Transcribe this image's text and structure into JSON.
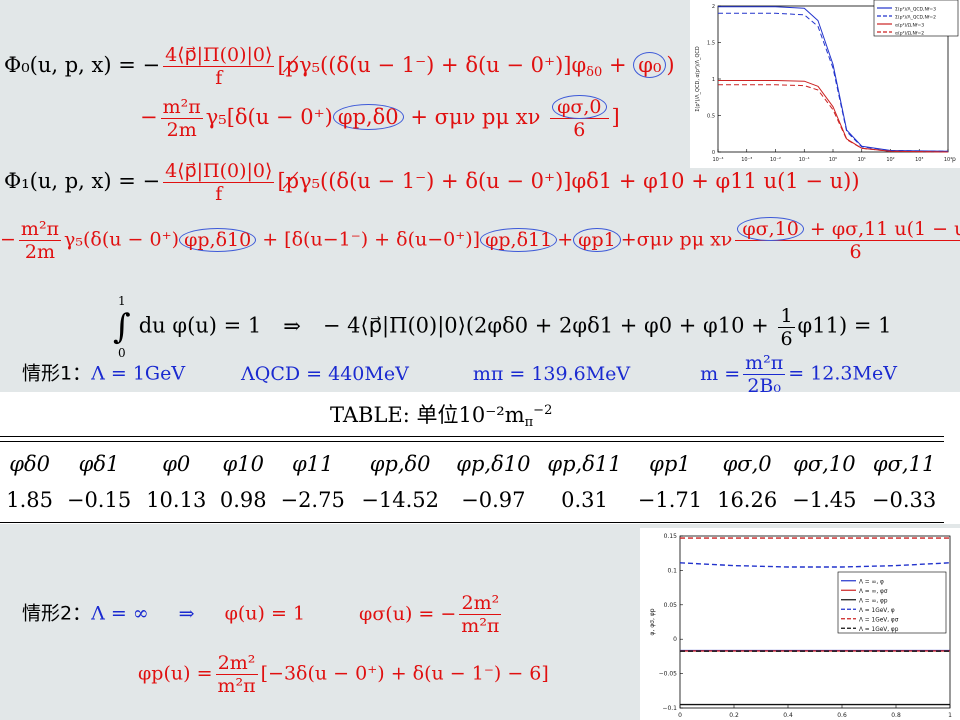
{
  "equations": {
    "phi0_line1": {
      "lhs": "Φ₀(u, p, x) = −",
      "frac_num": "4⟨p⃗|Π(0)|0⟩",
      "frac_den": "f",
      "body": "[p̸γ₅((δ(u − 1⁻) + δ(u − 0⁺)]φ",
      "body_sub": "δ0",
      "plus": " + ",
      "circled": "φ₀",
      "close": ")"
    },
    "phi0_line2": {
      "minus": "−",
      "frac_num": "m²π",
      "frac_den": "2m",
      "body": "γ₅[δ(u − 0⁺)",
      "circled1": "φp,δ0",
      "mid": " + σμν pμ xν ",
      "frac2_num": "φσ,0",
      "frac2_den": "6",
      "close": "]"
    },
    "phi1_line1": {
      "lhs": "Φ₁(u, p, x) = −",
      "frac_num": "4⟨p⃗|Π(0)|0⟩",
      "frac_den": "f",
      "body": "[p̸γ₅((δ(u − 1⁻) + δ(u − 0⁺)]φδ1 + φ10 + φ11 u(1 − u))"
    },
    "phi1_line2": {
      "minus": "−",
      "frac_num": "m²π",
      "frac_den": "2m",
      "body1": "γ₅(δ(u − 0⁺)",
      "circled1": "φp,δ10",
      "body2": " + [δ(u−1⁻) + δ(u−0⁺)]",
      "circled2": "φp,δ11",
      "plus": "+",
      "circled3": "φp1",
      "body3": "+σμν pμ xν",
      "frac_num2_circled": "φσ,10",
      "frac_num2_rest": " + φσ,11 u(1 − u)",
      "frac_den2": "6",
      "close": ")]"
    },
    "normalization": {
      "integral": "∫",
      "upper": "1",
      "lower": "0",
      "integrand": "du φ(u) = 1",
      "implies": "⇒",
      "rhs": "− 4⟨p⃗|Π(0)|0⟩(2φδ0 + 2φδ1 + φ0 + φ10 + ",
      "frac_num": "1",
      "frac_den": "6",
      "rhs_end": "φ11) = 1"
    },
    "case1": {
      "label": "情形1：",
      "lambda": "Λ = 1GeV",
      "lambda_qcd": "ΛQCD = 440MeV",
      "m_pi": "mπ = 139.6MeV",
      "m_lhs": "m =",
      "m_frac_num": "m²π",
      "m_frac_den": "2B₀",
      "m_rhs": "= 12.3MeV"
    }
  },
  "table": {
    "title": "TABLE:  单位10⁻²m",
    "title_sub": "π",
    "title_sup": "−2",
    "headers": [
      "φδ0",
      "φδ1",
      "φ0",
      "φ10",
      "φ11",
      "φp,δ0",
      "φp,δ10",
      "φp,δ11",
      "φp1",
      "φσ,0",
      "φσ,10",
      "φσ,11"
    ],
    "values": [
      "1.85",
      "−0.15",
      "10.13",
      "0.98",
      "−2.75",
      "−14.52",
      "−0.97",
      "0.31",
      "−1.71",
      "16.26",
      "−1.45",
      "−0.33"
    ]
  },
  "case2": {
    "label": "情形2：",
    "lambda": "Λ = ∞",
    "implies": "⇒",
    "phi": "φ(u) = 1",
    "phi_sigma_lhs": "φσ(u) = −",
    "phi_sigma_num": "2m²",
    "phi_sigma_den": "m²π",
    "phi_p_lhs": "φp(u) =",
    "phi_p_num": "2m²",
    "phi_p_den": "m²π",
    "phi_p_rhs": "[−3δ(u − 0⁺) + δ(u − 1⁻) − 6]"
  },
  "chart_data": [
    {
      "type": "line",
      "xscale": "log",
      "xlim": [
        0.0001,
        10000
      ],
      "ylim": [
        0,
        2
      ],
      "x_ticks": [
        "10⁻⁴",
        "10⁻³",
        "10⁻²",
        "10⁻¹",
        "10⁰",
        "10¹",
        "10²",
        "10³",
        "10⁴"
      ],
      "y_ticks": [
        "0",
        "0.5",
        "1",
        "1.5",
        "2"
      ],
      "xlabel": "p",
      "ylabel": "Σ(p²)/Λ_QCD, α(p²)/Λ_QCD",
      "legend_position": "top-right",
      "series": [
        {
          "name": "Σ(p²)/Λ_QCD,Nf=3",
          "color": "#2233cc",
          "dash": "solid",
          "x": [
            0.0001,
            0.01,
            0.1,
            0.3,
            1,
            3,
            10,
            100,
            10000
          ],
          "y": [
            1.99,
            1.99,
            1.97,
            1.8,
            1.2,
            0.3,
            0.08,
            0.02,
            0.01
          ]
        },
        {
          "name": "Σ(p²)/Λ_QCD,Nf=2",
          "color": "#2233cc",
          "dash": "dashed",
          "x": [
            0.0001,
            0.01,
            0.1,
            0.3,
            1,
            3,
            10,
            100,
            10000
          ],
          "y": [
            1.9,
            1.9,
            1.88,
            1.72,
            1.15,
            0.28,
            0.07,
            0.02,
            0.01
          ]
        },
        {
          "name": "α(p²)/Ω,Nf=3",
          "color": "#cc2222",
          "dash": "solid",
          "x": [
            0.0001,
            0.01,
            0.1,
            0.3,
            1,
            3,
            10,
            100,
            10000
          ],
          "y": [
            0.98,
            0.98,
            0.97,
            0.9,
            0.62,
            0.18,
            0.05,
            0.01,
            0.0
          ]
        },
        {
          "name": "α(p²)/Ω,Nf=2",
          "color": "#cc2222",
          "dash": "dashed",
          "x": [
            0.0001,
            0.01,
            0.1,
            0.3,
            1,
            3,
            10,
            100,
            10000
          ],
          "y": [
            0.92,
            0.92,
            0.91,
            0.85,
            0.58,
            0.17,
            0.05,
            0.01,
            0.0
          ]
        }
      ]
    },
    {
      "type": "line",
      "xlim": [
        0,
        1
      ],
      "ylim": [
        -0.1,
        0.15
      ],
      "x_ticks": [
        "0",
        "0.2",
        "0.4",
        "0.6",
        "0.8",
        "1"
      ],
      "y_ticks": [
        "−0.1",
        "−0.05",
        "0",
        "0.05",
        "0.1",
        "0.15"
      ],
      "ylabel": "φ, φσ, φp",
      "legend_position": "right",
      "series": [
        {
          "name": "Λ = ∞, φ",
          "color": "#2233cc",
          "dash": "solid",
          "x": [
            0,
            1
          ],
          "y": [
            -0.0165,
            -0.0165
          ]
        },
        {
          "name": "Λ = ∞, φσ",
          "color": "#cc2222",
          "dash": "solid",
          "x": [
            0,
            1
          ],
          "y": [
            -0.017,
            -0.017
          ]
        },
        {
          "name": "Λ = ∞, φp",
          "color": "#111111",
          "dash": "solid",
          "x": [
            0,
            1
          ],
          "y": [
            -0.095,
            -0.095
          ]
        },
        {
          "name": "Λ = 1GeV, φ",
          "color": "#2233cc",
          "dash": "dashed",
          "x": [
            0,
            0.2,
            0.4,
            0.6,
            0.8,
            1
          ],
          "y": [
            0.111,
            0.107,
            0.105,
            0.105,
            0.107,
            0.111
          ]
        },
        {
          "name": "Λ = 1GeV, φσ",
          "color": "#cc2222",
          "dash": "dashed",
          "x": [
            0,
            1
          ],
          "y": [
            0.147,
            0.147
          ]
        },
        {
          "name": "Λ = 1GeV, φp",
          "color": "#111111",
          "dash": "dashed",
          "x": [
            0,
            1
          ],
          "y": [
            -0.0175,
            -0.0175
          ]
        }
      ]
    }
  ]
}
